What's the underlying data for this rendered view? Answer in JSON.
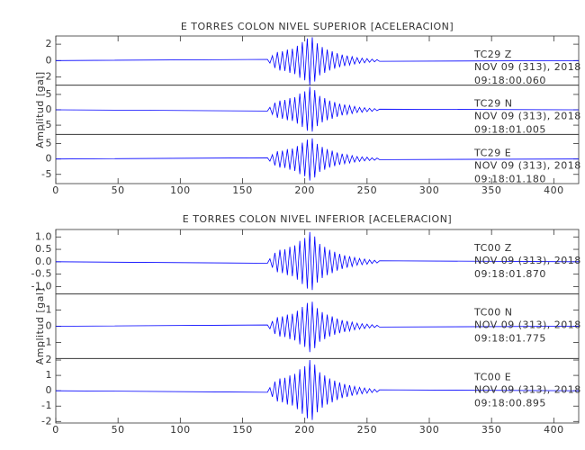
{
  "chart_data": [
    {
      "type": "line",
      "title": "E TORRES COLON NIVEL SUPERIOR [ACELERACION]",
      "ylabel": "Amplitud [gal]",
      "xlim": [
        0,
        420
      ],
      "xticks": [
        0,
        50,
        100,
        150,
        200,
        250,
        300,
        350,
        400
      ],
      "x": [
        0,
        170,
        172,
        174,
        176,
        178,
        180,
        182,
        184,
        186,
        188,
        190,
        192,
        194,
        196,
        198,
        200,
        202,
        204,
        206,
        208,
        210,
        212,
        214,
        216,
        218,
        220,
        222,
        224,
        226,
        228,
        230,
        232,
        234,
        236,
        238,
        240,
        242,
        244,
        246,
        248,
        250,
        252,
        254,
        256,
        258,
        260,
        420
      ],
      "series": [
        {
          "name": "TC29  Z",
          "date": "NOV 09 (313), 2018",
          "time": "09:18:00.060",
          "color": "#0000ff",
          "ylim": [
            -3,
            3
          ],
          "yticks": [
            2,
            0,
            -2
          ],
          "values": [
            0,
            0.15,
            -0.3,
            0.6,
            -0.9,
            1.05,
            -1.2,
            1.14,
            -1.26,
            1.35,
            -1.5,
            1.44,
            -1.65,
            1.8,
            -2.1,
            2.25,
            -2.4,
            2.7,
            -3.0,
            2.85,
            -2.55,
            2.1,
            -1.8,
            1.65,
            -1.5,
            1.35,
            -1.2,
            1.14,
            -0.99,
            0.9,
            -0.81,
            0.72,
            -0.66,
            0.6,
            -0.54,
            0.48,
            -0.42,
            0.36,
            -0.33,
            0.3,
            -0.27,
            0.24,
            -0.21,
            0.18,
            -0.15,
            0.12,
            -0.09,
            0
          ]
        },
        {
          "name": "TC29  N",
          "date": "NOV 09 (313), 2018",
          "time": "09:18:01.005",
          "color": "#0000ff",
          "ylim": [
            -8,
            8
          ],
          "yticks": [
            5,
            0,
            -5
          ],
          "values": [
            0,
            -0.4,
            0.8,
            -1.5,
            2.3,
            -2.6,
            3,
            -2.9,
            3.2,
            -3.4,
            3.8,
            -3.6,
            4.1,
            -4.5,
            5.3,
            -5.6,
            6,
            -6.8,
            7.5,
            -7.1,
            6.4,
            -5.3,
            4.5,
            -4.1,
            3.8,
            -3.4,
            3,
            -2.9,
            2.5,
            -2.3,
            2,
            -1.8,
            1.7,
            -1.5,
            1.4,
            -1.2,
            1.1,
            -0.9,
            0.8,
            -0.8,
            0.7,
            -0.6,
            0.5,
            -0.5,
            0.4,
            -0.3,
            0.2,
            0
          ]
        },
        {
          "name": "TC29  E",
          "date": "NOV 09 (313), 2018",
          "time": "09:18:01.180",
          "color": "#0000ff",
          "ylim": [
            -8,
            8
          ],
          "yticks": [
            5,
            0,
            -5
          ],
          "values": [
            0,
            0.4,
            -0.7,
            1.4,
            -2.1,
            2.5,
            -2.8,
            2.7,
            -2.9,
            3.2,
            -3.5,
            3.4,
            -3.9,
            4.2,
            -4.9,
            5.3,
            -5.6,
            6.3,
            -7,
            6.7,
            -6,
            4.9,
            -4.2,
            3.9,
            -3.5,
            3.2,
            -2.8,
            2.7,
            -2.3,
            2.1,
            -1.9,
            1.7,
            -1.5,
            1.4,
            -1.3,
            1.1,
            -1,
            0.8,
            -0.8,
            0.7,
            -0.6,
            0.6,
            -0.5,
            0.4,
            -0.4,
            0.3,
            -0.2,
            0
          ]
        }
      ]
    },
    {
      "type": "line",
      "title": "E TORRES COLON NIVEL INFERIOR [ACELERACION]",
      "ylabel": "Amplitud [gal]",
      "xlim": [
        0,
        420
      ],
      "xticks": [
        0,
        50,
        100,
        150,
        200,
        250,
        300,
        350,
        400
      ],
      "x": [
        0,
        170,
        172,
        174,
        176,
        178,
        180,
        182,
        184,
        186,
        188,
        190,
        192,
        194,
        196,
        198,
        200,
        202,
        204,
        206,
        208,
        210,
        212,
        214,
        216,
        218,
        220,
        222,
        224,
        226,
        228,
        230,
        232,
        234,
        236,
        238,
        240,
        242,
        244,
        246,
        248,
        250,
        252,
        254,
        256,
        258,
        260,
        420
      ],
      "series": [
        {
          "name": "TC00  Z",
          "date": "NOV 09 (313), 2018",
          "time": "09:18:01.870",
          "color": "#0000ff",
          "ylim": [
            -1.3,
            1.3
          ],
          "yticks": [
            {
              "value": 1,
              "label": "1.0"
            },
            0.5,
            {
              "value": 0,
              "label": "0.0"
            },
            -0.5,
            {
              "value": -1,
              "label": "-1.0"
            }
          ],
          "values": [
            0,
            -0.06,
            0.12,
            -0.24,
            0.36,
            -0.42,
            0.48,
            -0.46,
            0.5,
            -0.54,
            0.6,
            -0.58,
            0.66,
            -0.72,
            0.84,
            -0.9,
            0.96,
            -1.08,
            1.2,
            -1.14,
            1.02,
            -0.84,
            0.72,
            -0.66,
            0.6,
            -0.54,
            0.48,
            -0.46,
            0.4,
            -0.36,
            0.32,
            -0.29,
            0.26,
            -0.24,
            0.22,
            -0.19,
            0.17,
            -0.14,
            0.13,
            -0.12,
            0.11,
            -0.1,
            0.08,
            -0.07,
            0.06,
            -0.05,
            0.04,
            0
          ]
        },
        {
          "name": "TC00  N",
          "date": "NOV 09 (313), 2018",
          "time": "09:18:01.775",
          "color": "#0000ff",
          "ylim": [
            -2,
            2
          ],
          "yticks": [
            1,
            0,
            -1
          ],
          "values": [
            0,
            0.08,
            -0.16,
            0.32,
            -0.48,
            0.56,
            -0.64,
            0.61,
            -0.67,
            0.72,
            -0.8,
            0.77,
            -0.88,
            0.96,
            -1.12,
            1.2,
            -1.28,
            1.44,
            -1.6,
            1.52,
            -1.36,
            1.12,
            -0.96,
            0.88,
            -0.8,
            0.72,
            -0.64,
            0.61,
            -0.53,
            0.48,
            -0.43,
            0.38,
            -0.35,
            0.32,
            -0.29,
            0.26,
            -0.22,
            0.19,
            -0.18,
            0.16,
            -0.14,
            0.13,
            -0.11,
            0.1,
            -0.08,
            0.06,
            -0.05,
            0
          ]
        },
        {
          "name": "TC00  E",
          "date": "NOV 09 (313), 2018",
          "time": "09:18:00.895",
          "color": "#0000ff",
          "ylim": [
            -2.1,
            2.1
          ],
          "yticks": [
            2,
            1,
            0,
            -1,
            -2
          ],
          "values": [
            0,
            -0.1,
            0.2,
            -0.4,
            0.6,
            -0.7,
            0.8,
            -0.76,
            0.84,
            -0.9,
            1,
            -0.96,
            1.1,
            -1.2,
            1.4,
            -1.5,
            1.6,
            -1.8,
            2,
            -1.9,
            1.7,
            -1.4,
            1.2,
            -1.1,
            1,
            -0.9,
            0.8,
            -0.76,
            0.66,
            -0.6,
            0.54,
            -0.48,
            0.44,
            -0.4,
            0.36,
            -0.32,
            0.28,
            -0.24,
            0.22,
            -0.2,
            0.18,
            -0.16,
            0.14,
            -0.12,
            0.1,
            -0.08,
            0.06,
            0
          ]
        }
      ]
    }
  ]
}
